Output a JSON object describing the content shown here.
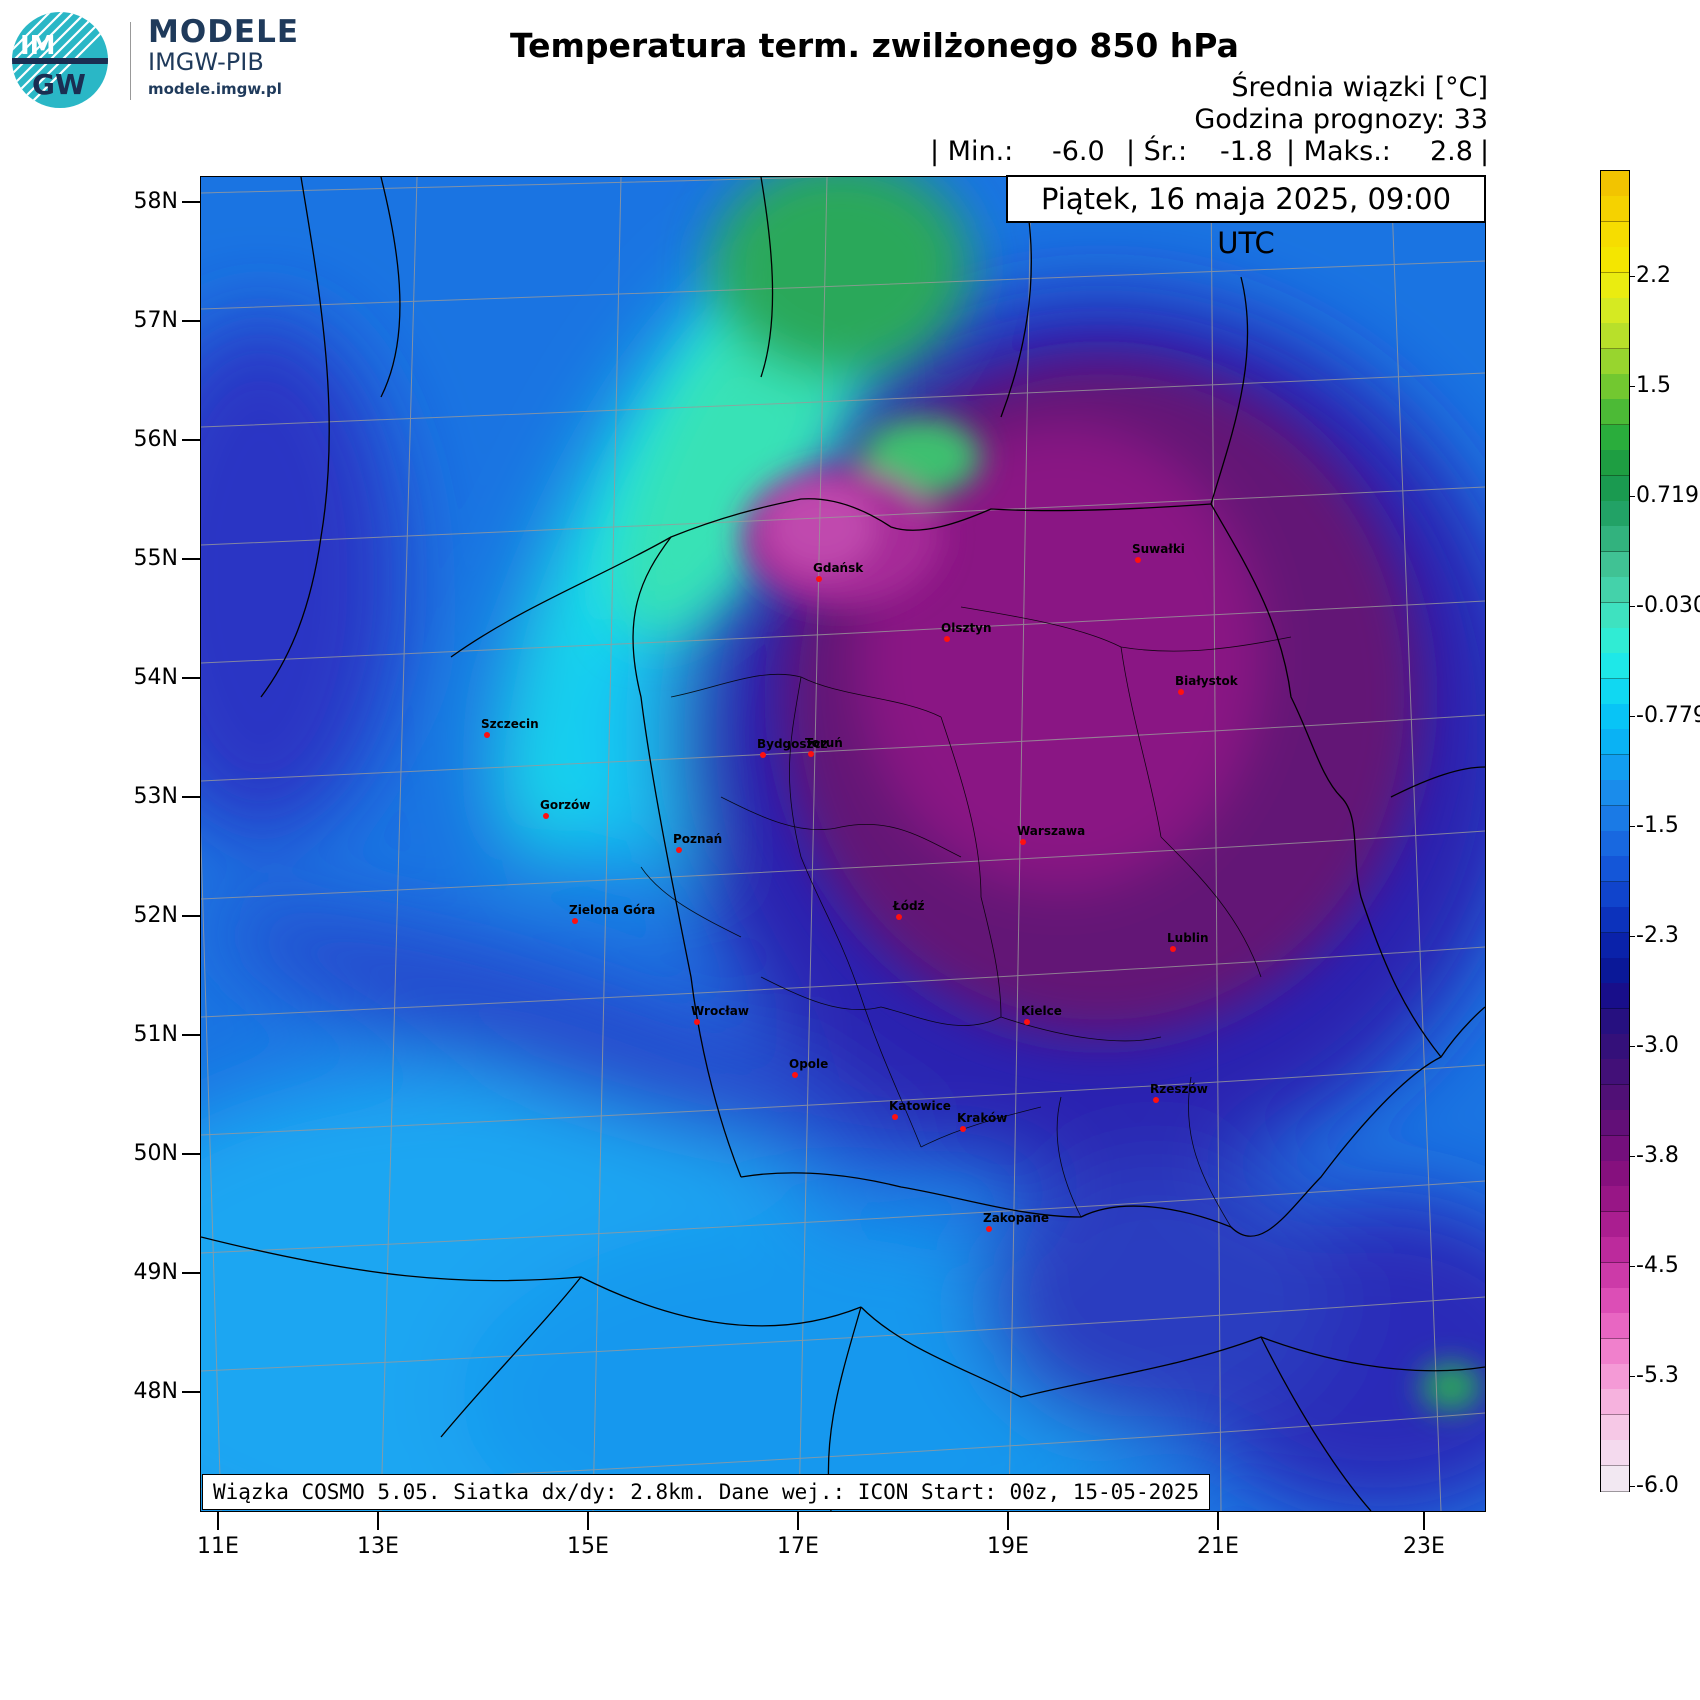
{
  "header": {
    "brand_line1": "MODELE",
    "brand_line2": "IMGW-PIB",
    "brand_url": "modele.imgw.pl",
    "logo_top": "IM",
    "logo_bottom": "GW",
    "title": "Temperatura term. zwilżonego 850 hPa",
    "subtitle1": "Średnia wiązki [°C]",
    "subtitle2": "Godzina prognozy: 33",
    "stats": {
      "min_label": "| Min.:",
      "min_value": "-6.0",
      "mean_label": "| Śr.:",
      "mean_value": "-1.8",
      "max_label": "| Maks.:",
      "max_value": "2.8",
      "end": "|"
    },
    "date": "Piątek, 16 maja 2025, 09:00 UTC"
  },
  "footnote": "Wiązka COSMO 5.05. Siatka dx/dy: 2.8km. Dane wej.: ICON Start: 00z, 15-05-2025",
  "axes": {
    "lat_labels": [
      "58N",
      "57N",
      "56N",
      "55N",
      "54N",
      "53N",
      "52N",
      "51N",
      "50N",
      "49N",
      "48N"
    ],
    "lon_labels": [
      "11E",
      "13E",
      "15E",
      "17E",
      "19E",
      "21E",
      "23E"
    ]
  },
  "colorbar": {
    "labels": [
      "2.2",
      "1.5",
      "0.719",
      "-0.030",
      "-0.779",
      "-1.5",
      "-2.3",
      "-3.0",
      "-3.8",
      "-4.5",
      "-5.3",
      "-6.0"
    ],
    "colors_top_to_bottom": [
      "#f2c400",
      "#f5d200",
      "#f6dd00",
      "#f4e600",
      "#eaec10",
      "#d5ea22",
      "#b8e02a",
      "#98d52e",
      "#72c830",
      "#4cba36",
      "#2aad3c",
      "#1e9e42",
      "#1a9a50",
      "#22a266",
      "#32b27e",
      "#40c294",
      "#44d2aa",
      "#3ee2c0",
      "#30ecd4",
      "#1ee8e8",
      "#10d8f2",
      "#08c4f6",
      "#0ab2f4",
      "#129ef0",
      "#1a8ceb",
      "#1a7ae6",
      "#1868e0",
      "#1456d8",
      "#1044cc",
      "#0c32bc",
      "#0a22aa",
      "#0a1898",
      "#180e8a",
      "#261080",
      "#34107a",
      "#421078",
      "#501076",
      "#620f78",
      "#740f7c",
      "#86107e",
      "#981686",
      "#aa1e90",
      "#bc2a9c",
      "#cc3aa8",
      "#dc4eb6",
      "#e866c2",
      "#f080cc",
      "#f49ad6",
      "#f6b2de",
      "#f6c8e6",
      "#f4daee",
      "#f2e8f2"
    ]
  },
  "cities": [
    {
      "name": "Gdańsk"
    },
    {
      "name": "Suwałki"
    },
    {
      "name": "Olsztyn"
    },
    {
      "name": "Białystok"
    },
    {
      "name": "Szczecin"
    },
    {
      "name": "Bydgoszcz"
    },
    {
      "name": "Toruń"
    },
    {
      "name": "Gorzów"
    },
    {
      "name": "Poznań"
    },
    {
      "name": "Warszawa"
    },
    {
      "name": "Zielona Góra"
    },
    {
      "name": "Łódź"
    },
    {
      "name": "Lublin"
    },
    {
      "name": "Wrocław"
    },
    {
      "name": "Kielce"
    },
    {
      "name": "Opole"
    },
    {
      "name": "Rzeszów"
    },
    {
      "name": "Katowice"
    },
    {
      "name": "Kraków"
    },
    {
      "name": "Zakopane"
    }
  ]
}
